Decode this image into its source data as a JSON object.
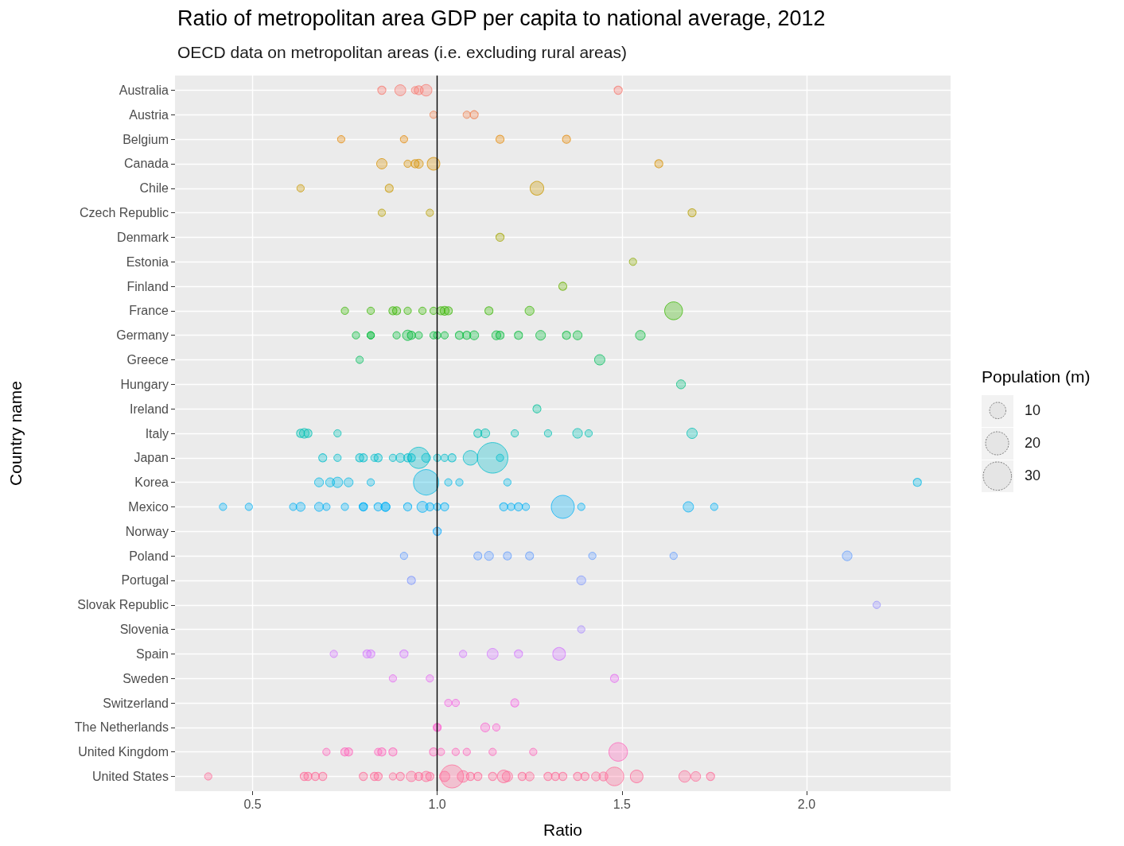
{
  "chart_data": {
    "type": "bubble",
    "orientation": "horizontal",
    "title": "Ratio of metropolitan area GDP per capita to national average, 2012",
    "subtitle": "OECD data on metropolitan areas (i.e. excluding rural areas)",
    "xlabel": "Ratio",
    "ylabel": "Country name",
    "legend_title": "Population (m)",
    "grid": true,
    "categories": [
      "Australia",
      "Austria",
      "Belgium",
      "Canada",
      "Chile",
      "Czech Republic",
      "Denmark",
      "Estonia",
      "Finland",
      "France",
      "Germany",
      "Greece",
      "Hungary",
      "Ireland",
      "Italy",
      "Japan",
      "Korea",
      "Mexico",
      "Norway",
      "Poland",
      "Portugal",
      "Slovak Republic",
      "Slovenia",
      "Spain",
      "Sweden",
      "Switzerland",
      "The Netherlands",
      "United Kingdom",
      "United States"
    ],
    "xlim": [
      0.29,
      2.39
    ],
    "xticks": [
      {
        "value": 0.5,
        "label": "0.5"
      },
      {
        "value": 1,
        "label": "1.0"
      },
      {
        "value": 1.5,
        "label": "1.5"
      },
      {
        "value": 2,
        "label": "2.0"
      }
    ],
    "size_legend": [
      10,
      20,
      30
    ],
    "ref_lines": [
      {
        "axis": "x",
        "value": 1,
        "color": "#000000"
      }
    ],
    "series": [
      {
        "color": "#f8766d",
        "x": [
          "Australia",
          "Australia",
          "Australia",
          "Australia",
          "Australia",
          "Australia"
        ],
        "values": [
          0.85,
          0.9,
          0.94,
          0.95,
          0.97,
          1.49
        ],
        "sizes": [
          2.5,
          4.5,
          2,
          3,
          5,
          2.5
        ]
      },
      {
        "color": "#f07e4c",
        "x": [
          "Austria",
          "Austria",
          "Austria"
        ],
        "values": [
          0.99,
          1.08,
          1.1
        ],
        "sizes": [
          2,
          2,
          2.5
        ]
      },
      {
        "color": "#e58700",
        "x": [
          "Belgium",
          "Belgium",
          "Belgium",
          "Belgium"
        ],
        "values": [
          0.74,
          0.91,
          1.17,
          1.35
        ],
        "sizes": [
          2,
          2,
          2.5,
          2.5
        ]
      },
      {
        "color": "#d89000",
        "x": [
          "Canada",
          "Canada",
          "Canada",
          "Canada",
          "Canada",
          "Canada"
        ],
        "values": [
          0.85,
          0.92,
          0.94,
          0.95,
          0.99,
          1.6
        ],
        "sizes": [
          4,
          2,
          2.5,
          3,
          6,
          2.5
        ]
      },
      {
        "color": "#c99800",
        "x": [
          "Chile",
          "Chile",
          "Chile"
        ],
        "values": [
          0.63,
          0.87,
          1.27
        ],
        "sizes": [
          2,
          2.5,
          7
        ]
      },
      {
        "color": "#b79f00",
        "x": [
          "Czech Republic",
          "Czech Republic",
          "Czech Republic"
        ],
        "values": [
          0.85,
          0.98,
          1.69
        ],
        "sizes": [
          2,
          2,
          2.5
        ]
      },
      {
        "color": "#a3a500",
        "x": [
          "Denmark"
        ],
        "values": [
          1.17
        ],
        "sizes": [
          2.5
        ]
      },
      {
        "color": "#8bab00",
        "x": [
          "Estonia"
        ],
        "values": [
          1.53
        ],
        "sizes": [
          2
        ]
      },
      {
        "color": "#6bb100",
        "x": [
          "Finland"
        ],
        "values": [
          1.34
        ],
        "sizes": [
          2.5
        ]
      },
      {
        "color": "#39b600",
        "x": [
          "France",
          "France",
          "France",
          "France",
          "France",
          "France",
          "France",
          "France",
          "France",
          "France",
          "France",
          "France",
          "France"
        ],
        "values": [
          0.75,
          0.82,
          0.88,
          0.89,
          0.92,
          0.96,
          0.99,
          1.01,
          1.02,
          1.03,
          1.14,
          1.25,
          1.64
        ],
        "sizes": [
          2,
          2,
          2.5,
          2.5,
          2,
          2,
          2,
          2.5,
          3,
          2.5,
          2.5,
          3,
          12
        ]
      },
      {
        "color": "#00ba38",
        "x": [
          "Germany",
          "Germany",
          "Germany",
          "Germany",
          "Germany",
          "Germany",
          "Germany",
          "Germany",
          "Germany",
          "Germany",
          "Germany",
          "Germany",
          "Germany",
          "Germany",
          "Germany",
          "Germany",
          "Germany",
          "Germany",
          "Germany",
          "Germany"
        ],
        "values": [
          0.78,
          0.82,
          0.82,
          0.89,
          0.92,
          0.93,
          0.95,
          0.99,
          1.0,
          1.02,
          1.06,
          1.08,
          1.1,
          1.16,
          1.17,
          1.22,
          1.28,
          1.35,
          1.38,
          1.55
        ],
        "sizes": [
          2,
          2,
          2,
          2,
          4,
          2.5,
          2,
          2,
          2,
          2,
          2.5,
          2.5,
          3,
          3,
          2.5,
          2.5,
          3.5,
          2.5,
          3,
          3.5
        ]
      },
      {
        "color": "#00bd5c",
        "x": [
          "Greece",
          "Greece"
        ],
        "values": [
          0.79,
          1.44
        ],
        "sizes": [
          2,
          4
        ]
      },
      {
        "color": "#00bf7d",
        "x": [
          "Hungary"
        ],
        "values": [
          1.66
        ],
        "sizes": [
          3
        ]
      },
      {
        "color": "#00c19a",
        "x": [
          "Ireland"
        ],
        "values": [
          1.27
        ],
        "sizes": [
          2.5
        ]
      },
      {
        "color": "#00c0b4",
        "x": [
          "Italy",
          "Italy",
          "Italy",
          "Italy",
          "Italy",
          "Italy",
          "Italy",
          "Italy",
          "Italy",
          "Italy",
          "Italy"
        ],
        "values": [
          0.63,
          0.64,
          0.65,
          0.73,
          1.11,
          1.13,
          1.21,
          1.3,
          1.38,
          1.41,
          1.69
        ],
        "sizes": [
          2.5,
          3.5,
          2.5,
          2,
          2.5,
          3,
          2,
          2,
          3.5,
          2,
          4
        ]
      },
      {
        "color": "#00bdcc",
        "x": [
          "Japan",
          "Japan",
          "Japan",
          "Japan",
          "Japan",
          "Japan",
          "Japan",
          "Japan",
          "Japan",
          "Japan",
          "Japan",
          "Japan",
          "Japan",
          "Japan",
          "Japan",
          "Japan",
          "Japan",
          "Japan"
        ],
        "values": [
          0.69,
          0.73,
          0.79,
          0.8,
          0.83,
          0.84,
          0.88,
          0.9,
          0.92,
          0.93,
          0.95,
          0.97,
          1.0,
          1.02,
          1.04,
          1.09,
          1.15,
          1.17
        ],
        "sizes": [
          2.5,
          2,
          2.5,
          2.5,
          2,
          2.5,
          2,
          3,
          2.5,
          2.5,
          17,
          3,
          2,
          2,
          2.5,
          8,
          35,
          2
        ]
      },
      {
        "color": "#00b8e5",
        "x": [
          "Korea",
          "Korea",
          "Korea",
          "Korea",
          "Korea",
          "Korea",
          "Korea",
          "Korea",
          "Korea",
          "Korea"
        ],
        "values": [
          0.68,
          0.71,
          0.73,
          0.76,
          0.82,
          0.97,
          1.03,
          1.06,
          1.19,
          2.3
        ],
        "sizes": [
          3,
          3,
          4,
          3,
          2,
          24,
          2,
          2,
          2,
          2.5
        ]
      },
      {
        "color": "#00b0f6",
        "x": [
          "Mexico",
          "Mexico",
          "Mexico",
          "Mexico",
          "Mexico",
          "Mexico",
          "Mexico",
          "Mexico",
          "Mexico",
          "Mexico",
          "Mexico",
          "Mexico",
          "Mexico",
          "Mexico",
          "Mexico",
          "Mexico",
          "Mexico",
          "Mexico",
          "Mexico",
          "Mexico",
          "Mexico",
          "Mexico",
          "Mexico",
          "Mexico",
          "Mexico"
        ],
        "values": [
          0.42,
          0.49,
          0.61,
          0.63,
          0.68,
          0.7,
          0.75,
          0.8,
          0.8,
          0.84,
          0.86,
          0.86,
          0.92,
          0.96,
          0.98,
          1.0,
          1.02,
          1.18,
          1.2,
          1.22,
          1.24,
          1.34,
          1.39,
          1.68,
          1.75
        ],
        "sizes": [
          2,
          2,
          2,
          3,
          3,
          2,
          2,
          2.5,
          2.5,
          2.5,
          3,
          3,
          2.5,
          4.5,
          2.5,
          2,
          2.5,
          2.5,
          2,
          2.5,
          2,
          20,
          2,
          4,
          2
        ]
      },
      {
        "color": "#00a5ff",
        "x": [
          "Norway"
        ],
        "values": [
          1.0
        ],
        "sizes": [
          2.5
        ]
      },
      {
        "color": "#619cff",
        "x": [
          "Poland",
          "Poland",
          "Poland",
          "Poland",
          "Poland",
          "Poland",
          "Poland",
          "Poland"
        ],
        "values": [
          0.91,
          1.11,
          1.14,
          1.19,
          1.25,
          1.42,
          1.64,
          2.11
        ],
        "sizes": [
          2,
          2.5,
          3,
          2.5,
          2.5,
          2,
          2,
          3.5
        ]
      },
      {
        "color": "#7d96ff",
        "x": [
          "Portugal",
          "Portugal"
        ],
        "values": [
          0.93,
          1.39
        ],
        "sizes": [
          2.5,
          3
        ]
      },
      {
        "color": "#9590ff",
        "x": [
          "Slovak Republic"
        ],
        "values": [
          2.19
        ],
        "sizes": [
          2
        ]
      },
      {
        "color": "#a989ff",
        "x": [
          "Slovenia"
        ],
        "values": [
          1.39
        ],
        "sizes": [
          2
        ]
      },
      {
        "color": "#d376ff",
        "x": [
          "Spain",
          "Spain",
          "Spain",
          "Spain",
          "Spain",
          "Spain",
          "Spain",
          "Spain"
        ],
        "values": [
          0.72,
          0.81,
          0.82,
          0.91,
          1.07,
          1.15,
          1.22,
          1.33
        ],
        "sizes": [
          2,
          2.5,
          2.5,
          2.5,
          2,
          4.5,
          2.5,
          6
        ]
      },
      {
        "color": "#e76bf3",
        "x": [
          "Sweden",
          "Sweden",
          "Sweden"
        ],
        "values": [
          0.88,
          0.98,
          1.48
        ],
        "sizes": [
          2,
          2,
          2.5
        ]
      },
      {
        "color": "#f564e3",
        "x": [
          "Switzerland",
          "Switzerland",
          "Switzerland"
        ],
        "values": [
          1.03,
          1.05,
          1.21
        ],
        "sizes": [
          2,
          2,
          2.5
        ]
      },
      {
        "color": "#fd61d1",
        "x": [
          "The Netherlands",
          "The Netherlands",
          "The Netherlands",
          "The Netherlands"
        ],
        "values": [
          1.0,
          1.0,
          1.13,
          1.16
        ],
        "sizes": [
          2.5,
          2,
          3,
          2
        ]
      },
      {
        "color": "#ff62bc",
        "x": [
          "United Kingdom",
          "United Kingdom",
          "United Kingdom",
          "United Kingdom",
          "United Kingdom",
          "United Kingdom",
          "United Kingdom",
          "United Kingdom",
          "United Kingdom",
          "United Kingdom",
          "United Kingdom",
          "United Kingdom",
          "United Kingdom"
        ],
        "values": [
          0.7,
          0.75,
          0.76,
          0.84,
          0.85,
          0.88,
          0.99,
          1.01,
          1.05,
          1.08,
          1.15,
          1.26,
          1.49
        ],
        "sizes": [
          2,
          2.5,
          2.5,
          2,
          2.5,
          2.5,
          2.5,
          2,
          2,
          2,
          2,
          2,
          13
        ]
      },
      {
        "color": "#ff6a98",
        "x": [
          "United States",
          "United States",
          "United States",
          "United States",
          "United States",
          "United States",
          "United States",
          "United States",
          "United States",
          "United States",
          "United States",
          "United States",
          "United States",
          "United States",
          "United States",
          "United States",
          "United States",
          "United States",
          "United States",
          "United States",
          "United States",
          "United States",
          "United States",
          "United States",
          "United States",
          "United States",
          "United States",
          "United States",
          "United States",
          "United States",
          "United States",
          "United States",
          "United States",
          "United States",
          "United States",
          "United States"
        ],
        "values": [
          0.38,
          0.64,
          0.65,
          0.67,
          0.69,
          0.8,
          0.83,
          0.84,
          0.88,
          0.9,
          0.93,
          0.95,
          0.97,
          0.98,
          1.02,
          1.04,
          1.07,
          1.09,
          1.11,
          1.15,
          1.18,
          1.19,
          1.23,
          1.25,
          1.3,
          1.32,
          1.34,
          1.38,
          1.4,
          1.43,
          1.45,
          1.48,
          1.54,
          1.67,
          1.7,
          1.74
        ],
        "sizes": [
          2,
          2.5,
          2.5,
          2.5,
          2.5,
          2.5,
          2.5,
          2.5,
          2,
          2.5,
          4,
          2.5,
          4,
          2.5,
          4,
          20,
          5,
          2.5,
          2.5,
          2.5,
          6,
          4,
          2.5,
          3,
          2.5,
          2.5,
          2.5,
          2.5,
          2.5,
          3,
          3,
          13,
          6,
          5,
          3.5,
          2.5
        ]
      }
    ]
  }
}
